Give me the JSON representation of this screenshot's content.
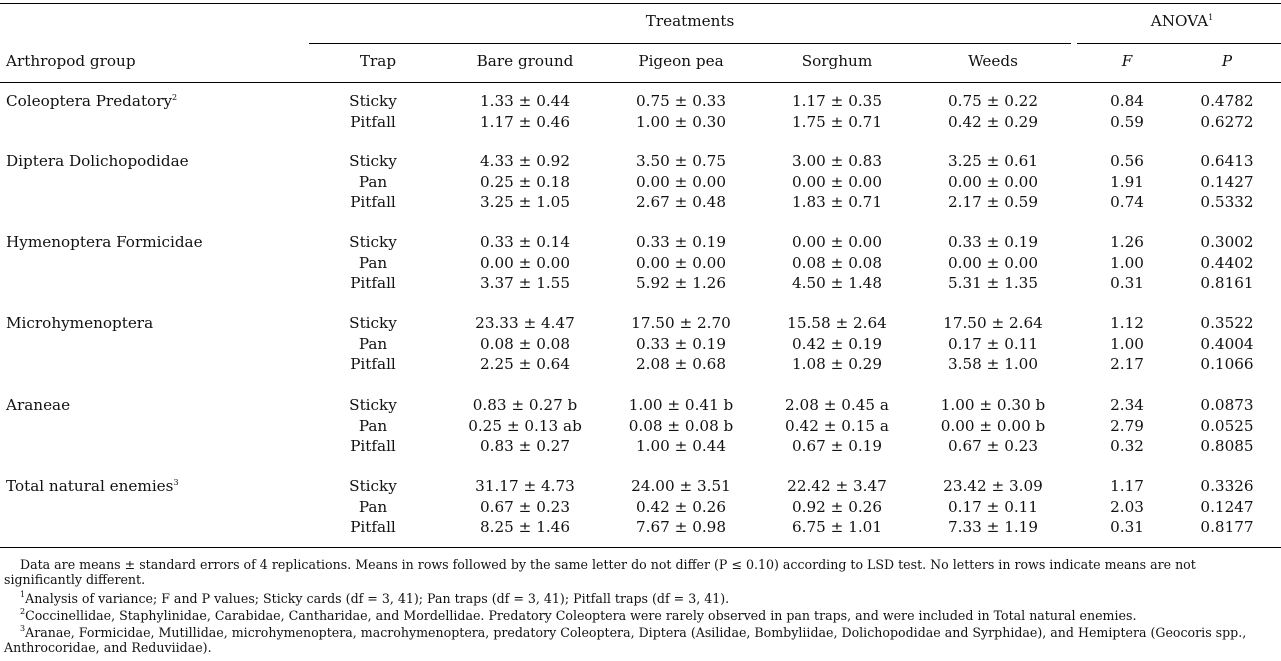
{
  "headers": {
    "treatments": "Treatments",
    "anova": "ANOVA",
    "anova_sup": "1",
    "arthropod_group": "Arthropod group",
    "trap": "Trap",
    "bare_ground": "Bare ground",
    "pigeon_pea": "Pigeon pea",
    "sorghum": "Sorghum",
    "weeds": "Weeds",
    "f": "F",
    "p": "P"
  },
  "groups": [
    {
      "name": "Coleoptera Predatory",
      "sup": "2",
      "rows": [
        {
          "trap": "Sticky",
          "bare": "1.33 ± 0.44",
          "pigeon": "0.75 ± 0.33",
          "sorghum": "1.17 ± 0.35",
          "weeds": "0.75 ± 0.22",
          "f": "0.84",
          "p": "0.4782"
        },
        {
          "trap": "Pitfall",
          "bare": "1.17 ± 0.46",
          "pigeon": "1.00 ± 0.30",
          "sorghum": "1.75 ± 0.71",
          "weeds": "0.42 ± 0.29",
          "f": "0.59",
          "p": "0.6272"
        }
      ]
    },
    {
      "name": "Diptera Dolichopodidae",
      "sup": "",
      "rows": [
        {
          "trap": "Sticky",
          "bare": "4.33 ± 0.92",
          "pigeon": "3.50 ± 0.75",
          "sorghum": "3.00 ± 0.83",
          "weeds": "3.25 ± 0.61",
          "f": "0.56",
          "p": "0.6413"
        },
        {
          "trap": "Pan",
          "bare": "0.25 ± 0.18",
          "pigeon": "0.00 ± 0.00",
          "sorghum": "0.00 ± 0.00",
          "weeds": "0.00 ± 0.00",
          "f": "1.91",
          "p": "0.1427"
        },
        {
          "trap": "Pitfall",
          "bare": "3.25 ± 1.05",
          "pigeon": "2.67 ± 0.48",
          "sorghum": "1.83 ± 0.71",
          "weeds": "2.17 ± 0.59",
          "f": "0.74",
          "p": "0.5332"
        }
      ]
    },
    {
      "name": "Hymenoptera Formicidae",
      "sup": "",
      "rows": [
        {
          "trap": "Sticky",
          "bare": "0.33 ± 0.14",
          "pigeon": "0.33 ± 0.19",
          "sorghum": "0.00 ± 0.00",
          "weeds": "0.33 ± 0.19",
          "f": "1.26",
          "p": "0.3002"
        },
        {
          "trap": "Pan",
          "bare": "0.00 ± 0.00",
          "pigeon": "0.00 ± 0.00",
          "sorghum": "0.08 ± 0.08",
          "weeds": "0.00 ± 0.00",
          "f": "1.00",
          "p": "0.4402"
        },
        {
          "trap": "Pitfall",
          "bare": "3.37 ± 1.55",
          "pigeon": "5.92 ± 1.26",
          "sorghum": "4.50 ± 1.48",
          "weeds": "5.31 ± 1.35",
          "f": "0.31",
          "p": "0.8161"
        }
      ]
    },
    {
      "name": "Microhymenoptera",
      "sup": "",
      "rows": [
        {
          "trap": "Sticky",
          "bare": "23.33 ± 4.47",
          "pigeon": "17.50 ± 2.70",
          "sorghum": "15.58 ± 2.64",
          "weeds": "17.50 ± 2.64",
          "f": "1.12",
          "p": "0.3522"
        },
        {
          "trap": "Pan",
          "bare": "0.08 ± 0.08",
          "pigeon": "0.33 ± 0.19",
          "sorghum": "0.42 ± 0.19",
          "weeds": "0.17 ± 0.11",
          "f": "1.00",
          "p": "0.4004"
        },
        {
          "trap": "Pitfall",
          "bare": "2.25 ± 0.64",
          "pigeon": "2.08 ± 0.68",
          "sorghum": "1.08 ± 0.29",
          "weeds": "3.58 ± 1.00",
          "f": "2.17",
          "p": "0.1066"
        }
      ]
    },
    {
      "name": "Araneae",
      "sup": "",
      "rows": [
        {
          "trap": "Sticky",
          "bare": "0.83 ± 0.27 b",
          "pigeon": "1.00 ± 0.41 b",
          "sorghum": "2.08 ± 0.45 a",
          "weeds": "1.00 ± 0.30 b",
          "f": "2.34",
          "p": "0.0873"
        },
        {
          "trap": "Pan",
          "bare": "0.25 ± 0.13 ab",
          "pigeon": "0.08 ± 0.08 b",
          "sorghum": "0.42 ± 0.15 a",
          "weeds": "0.00 ± 0.00 b",
          "f": "2.79",
          "p": "0.0525"
        },
        {
          "trap": "Pitfall",
          "bare": "0.83 ± 0.27",
          "pigeon": "1.00 ± 0.44",
          "sorghum": "0.67 ± 0.19",
          "weeds": "0.67 ± 0.23",
          "f": "0.32",
          "p": "0.8085"
        }
      ]
    },
    {
      "name": "Total natural enemies",
      "sup": "3",
      "rows": [
        {
          "trap": "Sticky",
          "bare": "31.17 ± 4.73",
          "pigeon": "24.00 ± 3.51",
          "sorghum": "22.42 ± 3.47",
          "weeds": "23.42 ± 3.09",
          "f": "1.17",
          "p": "0.3326"
        },
        {
          "trap": "Pan",
          "bare": "0.67 ± 0.23",
          "pigeon": "0.42 ± 0.26",
          "sorghum": "0.92 ± 0.26",
          "weeds": "0.17 ± 0.11",
          "f": "2.03",
          "p": "0.1247"
        },
        {
          "trap": "Pitfall",
          "bare": "8.25 ± 1.46",
          "pigeon": "7.67 ± 0.98",
          "sorghum": "6.75 ± 1.01",
          "weeds": "7.33 ± 1.19",
          "f": "0.31",
          "p": "0.8177"
        }
      ]
    }
  ],
  "footnotes": {
    "main": "Data are means ± standard errors of 4 replications. Means in rows followed by the same letter do not differ (P ≤ 0.10) according to LSD test. No letters in rows indicate means are not significantly different.",
    "fn1": "Analysis of variance; F and P values; Sticky cards (df = 3, 41); Pan traps (df = 3, 41); Pitfall traps (df = 3, 41).",
    "fn2": "Coccinellidae, Staphylinidae, Carabidae, Cantharidae, and Mordellidae. Predatory Coleoptera were rarely observed in pan traps, and were included in Total natural enemies.",
    "fn3": "Aranae, Formicidae, Mutillidae, microhymenoptera, macrohymenoptera, predatory Coleoptera, Diptera (Asilidae, Bombyliidae, Dolichopodidae and Syrphidae), and Hemiptera (Geocoris spp., Anthrocoridae, and Reduviidae).",
    "sup1": "1",
    "sup2": "2",
    "sup3": "3"
  }
}
